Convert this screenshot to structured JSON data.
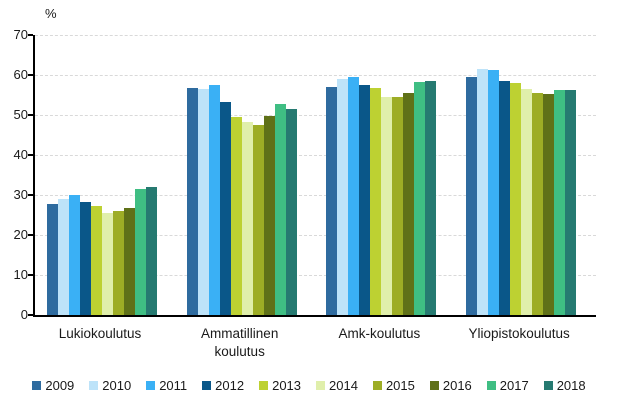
{
  "chart_data": {
    "type": "bar",
    "title": "",
    "ylabel": "%",
    "xlabel": "",
    "ylim": [
      0,
      70
    ],
    "yticks": [
      0,
      10,
      20,
      30,
      40,
      50,
      60,
      70
    ],
    "grid": "horizontal-dashed",
    "gridline_color": "#d9d9d9",
    "legend_position": "bottom",
    "categories": [
      "Lukiokoulutus",
      "Ammatillinen koulutus",
      "Amk-koulutus",
      "Yliopistokoulutus"
    ],
    "series": [
      {
        "name": "2009",
        "color": "#2e6b9f",
        "values": [
          27.8,
          56.7,
          56.9,
          59.5
        ]
      },
      {
        "name": "2010",
        "color": "#bde3f9",
        "values": [
          29.1,
          56.5,
          59.1,
          61.4
        ]
      },
      {
        "name": "2011",
        "color": "#3ab0f5",
        "values": [
          30.1,
          57.5,
          59.6,
          61.2
        ]
      },
      {
        "name": "2012",
        "color": "#0a5789",
        "values": [
          28.3,
          53.3,
          57.4,
          58.5
        ]
      },
      {
        "name": "2013",
        "color": "#bdd132",
        "values": [
          27.3,
          49.5,
          56.7,
          58.0
        ]
      },
      {
        "name": "2014",
        "color": "#e0efab",
        "values": [
          25.6,
          48.3,
          54.6,
          56.5
        ]
      },
      {
        "name": "2015",
        "color": "#9dad25",
        "values": [
          26.0,
          47.6,
          54.4,
          55.4
        ]
      },
      {
        "name": "2016",
        "color": "#5f7118",
        "values": [
          26.8,
          49.8,
          55.5,
          55.2
        ]
      },
      {
        "name": "2017",
        "color": "#3fbe83",
        "values": [
          31.5,
          52.8,
          58.2,
          56.2
        ]
      },
      {
        "name": "2018",
        "color": "#267a71",
        "values": [
          32.0,
          51.6,
          58.5,
          56.2
        ]
      }
    ]
  }
}
